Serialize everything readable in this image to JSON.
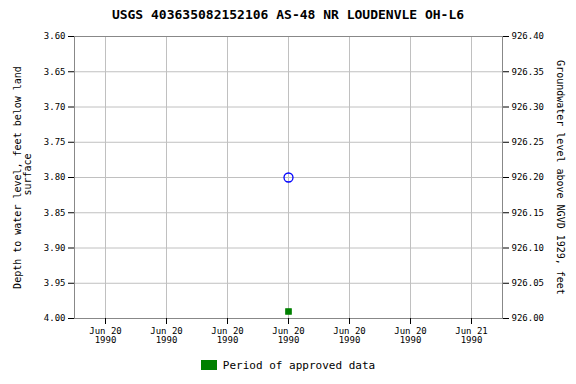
{
  "chart_data": {
    "type": "scatter",
    "title": "USGS 403635082152106 AS-48 NR LOUDENVLE OH-L6",
    "ylabel": "Depth to water level, feet below land\n surface",
    "y2label": "Groundwater level above NGVD 1929, feet",
    "categories": [
      "Jun 20\n1990",
      "Jun 20\n1990",
      "Jun 20\n1990",
      "Jun 20\n1990",
      "Jun 20\n1990",
      "Jun 20\n1990",
      "Jun 21\n1990"
    ],
    "series": [
      {
        "color": "#0000ff",
        "marker": "open_circle",
        "values": [
          null,
          null,
          null,
          3.8,
          null,
          null,
          null
        ]
      },
      {
        "name": "Period of approved data",
        "color": "#008000",
        "marker": "square",
        "values": [
          null,
          null,
          null,
          3.99,
          null,
          null,
          null
        ]
      }
    ],
    "ylim": [
      4.0,
      3.6
    ],
    "yticks": [
      {
        "value": 3.6,
        "label": "3.60"
      },
      {
        "value": 3.65,
        "label": "3.65"
      },
      {
        "value": 3.7,
        "label": "3.70"
      },
      {
        "value": 3.75,
        "label": "3.75"
      },
      {
        "value": 3.8,
        "label": "3.80"
      },
      {
        "value": 3.85,
        "label": "3.85"
      },
      {
        "value": 3.9,
        "label": "3.90"
      },
      {
        "value": 3.95,
        "label": "3.95"
      },
      {
        "value": 4.0,
        "label": "4.00"
      }
    ],
    "y2lim": [
      926.0,
      926.4
    ],
    "y2ticks": [
      {
        "value": 926.0,
        "label": "926.00"
      },
      {
        "value": 926.05,
        "label": "926.05"
      },
      {
        "value": 926.1,
        "label": "926.10"
      },
      {
        "value": 926.15,
        "label": "926.15"
      },
      {
        "value": 926.2,
        "label": "926.20"
      },
      {
        "value": 926.25,
        "label": "926.25"
      },
      {
        "value": 926.3,
        "label": "926.30"
      },
      {
        "value": 926.35,
        "label": "926.35"
      },
      {
        "value": 926.4,
        "label": "926.40"
      }
    ],
    "grid": true,
    "legend": "bottom"
  }
}
